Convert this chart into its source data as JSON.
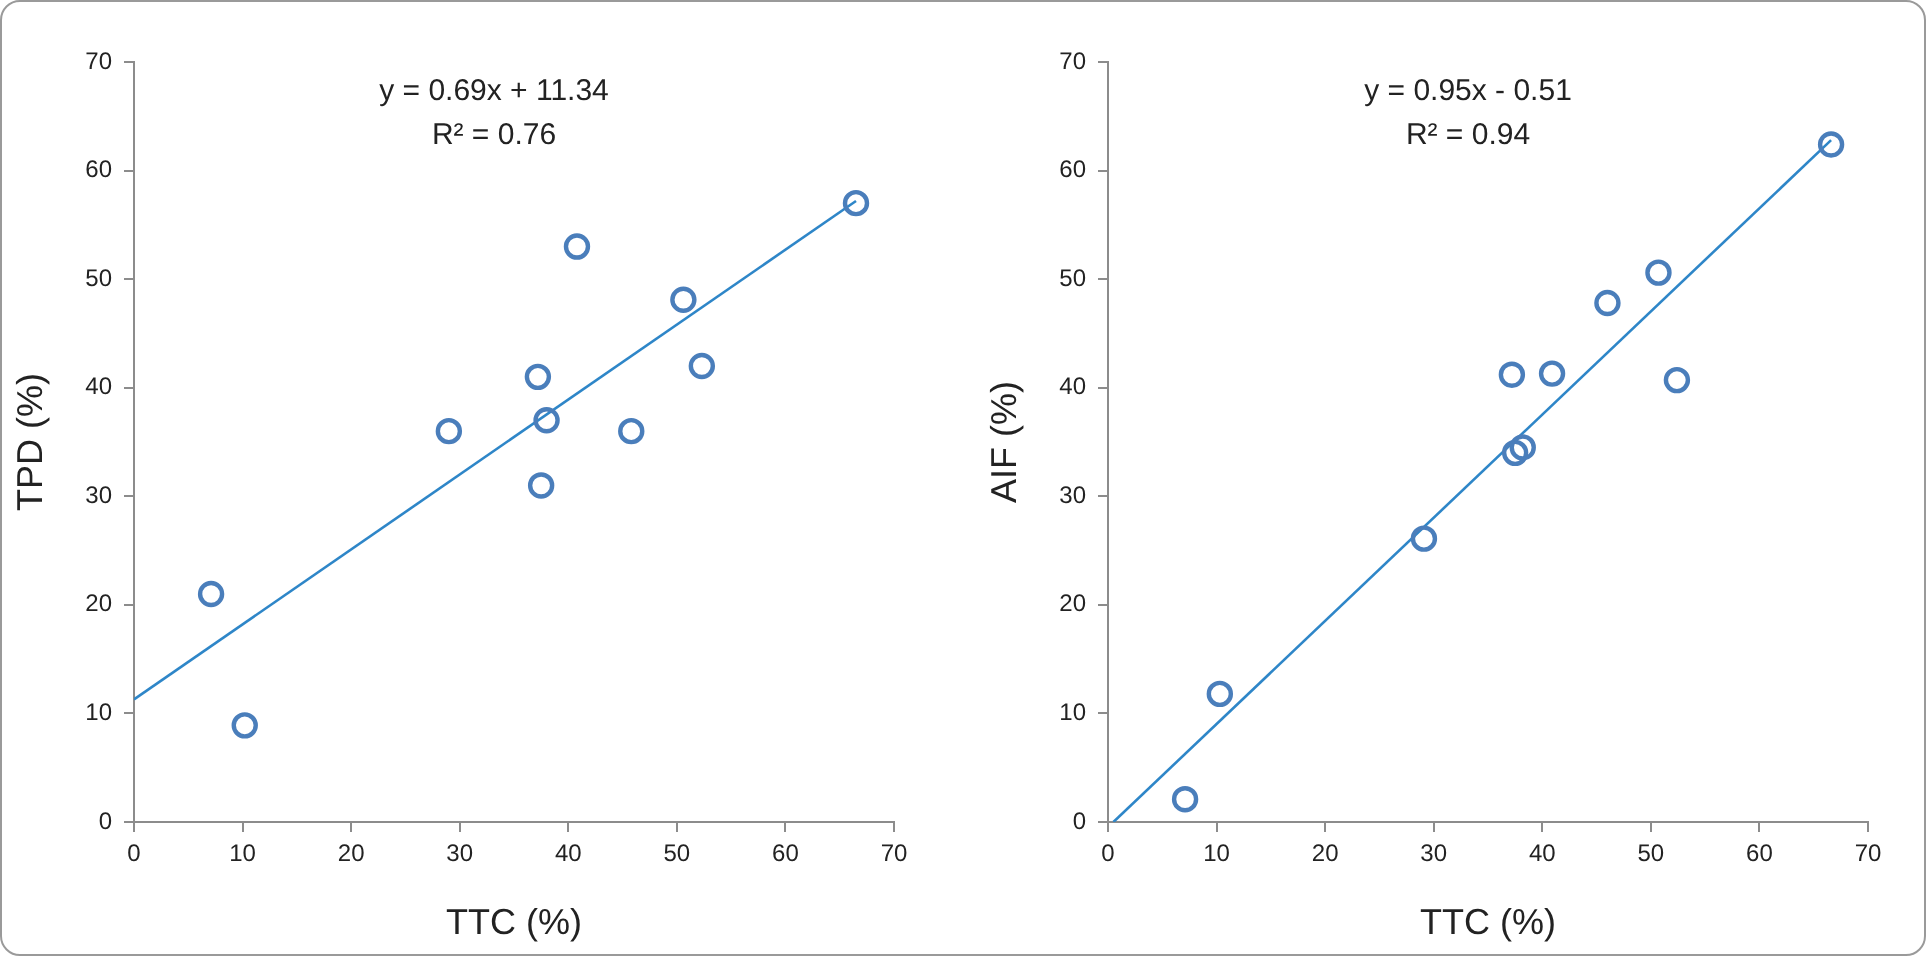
{
  "chart_data": [
    {
      "type": "scatter",
      "xlabel": "TTC (%)",
      "ylabel": "TPD (%)",
      "xlim": [
        0,
        70
      ],
      "ylim": [
        0,
        70
      ],
      "xticks": [
        0,
        10,
        20,
        30,
        40,
        50,
        60,
        70
      ],
      "yticks": [
        0,
        10,
        20,
        30,
        40,
        50,
        60,
        70
      ],
      "grid": false,
      "legend": false,
      "marker": "circle",
      "annotations": [
        "y = 0.69x + 11.34",
        "R² = 0.76"
      ],
      "series": [
        {
          "color": "#4a7ebb",
          "x": [
            7.1,
            10.2,
            29.0,
            37.2,
            37.5,
            38.0,
            40.8,
            45.8,
            50.6,
            52.3,
            66.5
          ],
          "values": [
            21.0,
            8.9,
            36.0,
            41.0,
            31.0,
            37.0,
            53.0,
            36.0,
            48.1,
            42.0,
            57.0
          ]
        },
        {
          "type": "line",
          "color": "#2e86c8",
          "marker": "none",
          "x": [
            0,
            66.5
          ],
          "values": [
            11.3,
            57.2
          ]
        }
      ]
    },
    {
      "type": "scatter",
      "xlabel": "TTC (%)",
      "ylabel": "AIF (%)",
      "xlim": [
        0,
        70
      ],
      "ylim": [
        0,
        70
      ],
      "xticks": [
        0,
        10,
        20,
        30,
        40,
        50,
        60,
        70
      ],
      "yticks": [
        0,
        10,
        20,
        30,
        40,
        50,
        60,
        70
      ],
      "grid": false,
      "legend": false,
      "marker": "circle",
      "annotations": [
        "y = 0.95x - 0.51",
        "R² = 0.94"
      ],
      "series": [
        {
          "color": "#4a7ebb",
          "x": [
            7.1,
            10.3,
            29.1,
            37.2,
            37.5,
            38.2,
            40.9,
            46.0,
            50.7,
            52.4,
            66.6
          ],
          "values": [
            2.1,
            11.8,
            26.1,
            41.2,
            34.0,
            34.5,
            41.3,
            47.8,
            50.6,
            40.7,
            62.4
          ]
        },
        {
          "type": "line",
          "color": "#2e86c8",
          "marker": "none",
          "x": [
            0.5,
            66.6
          ],
          "values": [
            0,
            62.8
          ]
        }
      ]
    }
  ]
}
